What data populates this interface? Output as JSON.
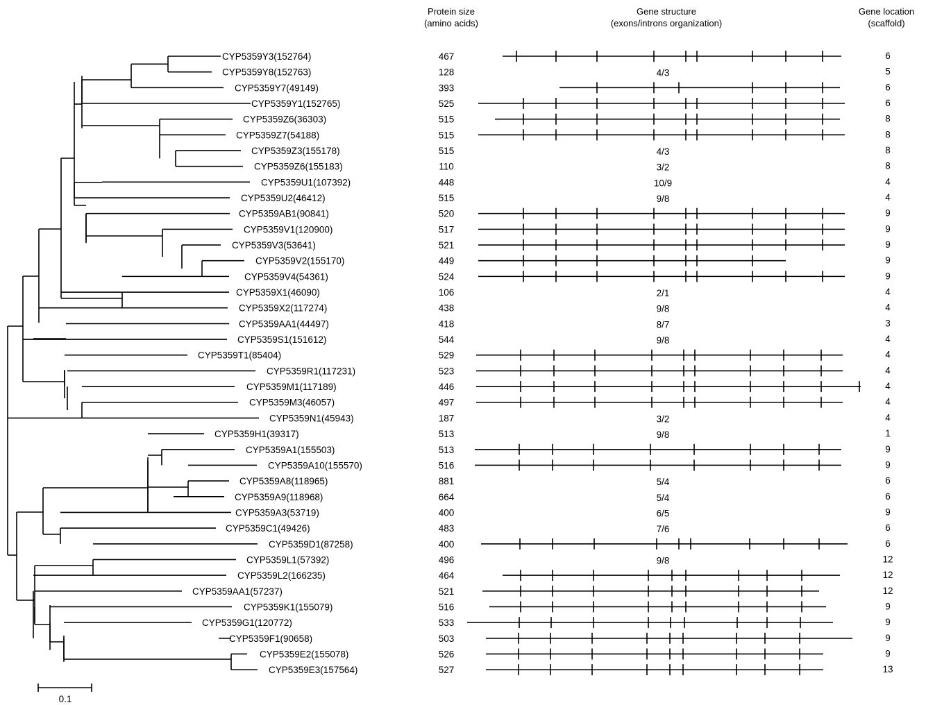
{
  "headers": {
    "protein_size": [
      "Protein size",
      "(amino acids)"
    ],
    "gene_structure": [
      "Gene structure",
      "(exons/introns organization)"
    ],
    "gene_location": [
      "Gene location",
      "(scaffold)"
    ]
  },
  "scale_bar": {
    "label": "0.1"
  },
  "rows": [
    {
      "name": "CYP5359Y3(152764)",
      "size": "467",
      "structure": "",
      "location": "6"
    },
    {
      "name": "CYP5359Y8(152763)",
      "size": "128",
      "structure": "4/3",
      "location": "5"
    },
    {
      "name": "CYP5359Y7(49149)",
      "size": "393",
      "structure": "",
      "location": "6"
    },
    {
      "name": "CYP5359Y1(152765)",
      "size": "525",
      "structure": "",
      "location": "6"
    },
    {
      "name": "CYP5359Z6(36303)",
      "size": "515",
      "structure": "",
      "location": "8"
    },
    {
      "name": "CYP5359Z7(54188)",
      "size": "515",
      "structure": "",
      "location": "8"
    },
    {
      "name": "CYP5359Z3(155178)",
      "size": "515",
      "structure": "4/3",
      "location": "8"
    },
    {
      "name": "CYP5359Z6(155183)",
      "size": "110",
      "structure": "3/2",
      "location": "8"
    },
    {
      "name": "CYP5359U1(107392)",
      "size": "448",
      "structure": "10/9",
      "location": "4"
    },
    {
      "name": "CYP5359U2(46412)",
      "size": "515",
      "structure": "9/8",
      "location": "4"
    },
    {
      "name": "CYP5359AB1(90841)",
      "size": "520",
      "structure": "",
      "location": "9"
    },
    {
      "name": "CYP5359V1(120900)",
      "size": "517",
      "structure": "",
      "location": "9"
    },
    {
      "name": "CYP5359V3(53641)",
      "size": "521",
      "structure": "",
      "location": "9"
    },
    {
      "name": "CYP5359V2(155170)",
      "size": "449",
      "structure": "",
      "location": "9"
    },
    {
      "name": "CYP5359V4(54361)",
      "size": "524",
      "structure": "",
      "location": "9"
    },
    {
      "name": "CYP5359X1(46090)",
      "size": "106",
      "structure": "2/1",
      "location": "4"
    },
    {
      "name": "CYP5359X2(117274)",
      "size": "438",
      "structure": "9/8",
      "location": "4"
    },
    {
      "name": "CYP5359AA1(44497)",
      "size": "418",
      "structure": "8/7",
      "location": "3"
    },
    {
      "name": "CYP5359S1(151612)",
      "size": "544",
      "structure": "9/8",
      "location": "4"
    },
    {
      "name": "CYP5359T1(85404)",
      "size": "529",
      "structure": "",
      "location": "4"
    },
    {
      "name": "CYP5359R1(117231)",
      "size": "523",
      "structure": "",
      "location": "4"
    },
    {
      "name": "CYP5359M1(117189)",
      "size": "446",
      "structure": "",
      "location": "4"
    },
    {
      "name": "CYP5359M3(46057)",
      "size": "497",
      "structure": "",
      "location": "4"
    },
    {
      "name": "CYP5359N1(45943)",
      "size": "187",
      "structure": "3/2",
      "location": "4"
    },
    {
      "name": "CYP5359H1(39317)",
      "size": "513",
      "structure": "9/8",
      "location": "1"
    },
    {
      "name": "CYP5359A1(155503)",
      "size": "513",
      "structure": "",
      "location": "9"
    },
    {
      "name": "CYP5359A10(155570)",
      "size": "516",
      "structure": "",
      "location": "9"
    },
    {
      "name": "CYP5359A8(118965)",
      "size": "881",
      "structure": "5/4",
      "location": "6"
    },
    {
      "name": "CYP5359A9(118968)",
      "size": "664",
      "structure": "5/4",
      "location": "6"
    },
    {
      "name": "CYP5359A3(53719)",
      "size": "400",
      "structure": "6/5",
      "location": "9"
    },
    {
      "name": "CYP5359C1(49426)",
      "size": "483",
      "structure": "7/6",
      "location": "6"
    },
    {
      "name": "CYP5359D1(87258)",
      "size": "400",
      "structure": "",
      "location": "6"
    },
    {
      "name": "CYP5359L1(57392)",
      "size": "496",
      "structure": "9/8",
      "location": "12"
    },
    {
      "name": "CYP5359L2(166235)",
      "size": "464",
      "structure": "",
      "location": "12"
    },
    {
      "name": "CYP5359AA1(57237)",
      "size": "521",
      "structure": "",
      "location": "12"
    },
    {
      "name": "CYP5359K1(155079)",
      "size": "516",
      "structure": "",
      "location": "9"
    },
    {
      "name": "CYP5359G1(120772)",
      "size": "533",
      "structure": "",
      "location": "9"
    },
    {
      "name": "CYP5359F1(90658)",
      "size": "503",
      "structure": "",
      "location": "9"
    },
    {
      "name": "CYP5359E2(155078)",
      "size": "526",
      "structure": "",
      "location": "9"
    },
    {
      "name": "CYP5359E3(157564)",
      "size": "527",
      "structure": "",
      "location": "13"
    }
  ]
}
